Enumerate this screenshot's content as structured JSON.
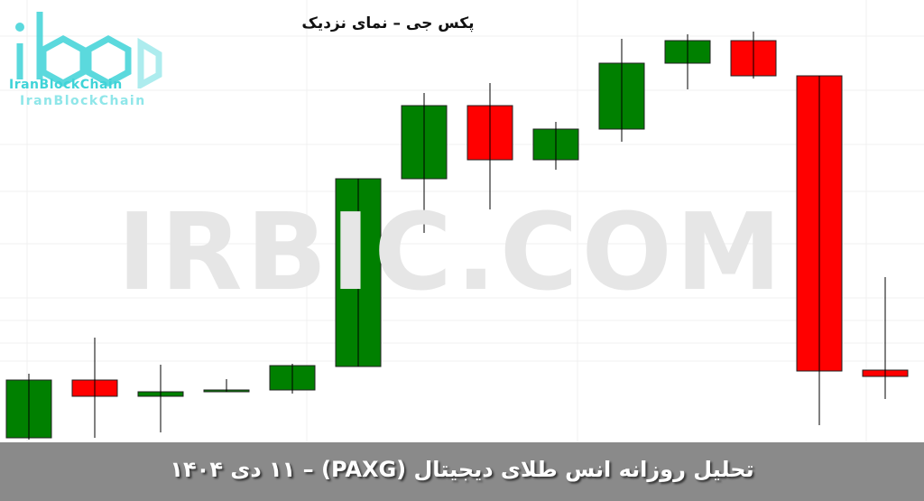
{
  "chart_data": {
    "type": "candlestick",
    "title": "پکس جی – نمای نزدیک",
    "xlabel": "",
    "ylabel": "",
    "grid": true,
    "colors": {
      "up": "#008000",
      "down": "#ff0000",
      "wick": "#000000"
    },
    "note_units": "relative price (no axis printed)",
    "candles": [
      {
        "open": 5,
        "close": 69,
        "high": 76,
        "low": 3
      },
      {
        "open": 69,
        "close": 51,
        "high": 116,
        "low": 5
      },
      {
        "open": 51,
        "close": 56,
        "high": 86,
        "low": 11
      },
      {
        "open": 56,
        "close": 58,
        "high": 70,
        "low": 56
      },
      {
        "open": 58,
        "close": 85,
        "high": 87,
        "low": 54
      },
      {
        "open": 84,
        "close": 292,
        "high": 292,
        "low": 84
      },
      {
        "open": 292,
        "close": 373,
        "high": 387,
        "low": 232
      },
      {
        "open": 373,
        "close": 313,
        "high": 398,
        "low": 258
      },
      {
        "open": 313,
        "close": 347,
        "high": 355,
        "low": 302
      },
      {
        "open": 347,
        "close": 420,
        "high": 447,
        "low": 333
      },
      {
        "open": 420,
        "close": 445,
        "high": 452,
        "low": 391
      },
      {
        "open": 445,
        "close": 406,
        "high": 455,
        "low": 403
      },
      {
        "open": 406,
        "close": 79,
        "high": 406,
        "low": 19
      },
      {
        "open": 80,
        "close": 73,
        "high": 183,
        "low": 48
      }
    ]
  },
  "logo": {
    "text": "IranBlockChain",
    "color": "#3fd3d8"
  },
  "watermark": "IRBIC.COM",
  "footer": {
    "text": "تحلیل روزانه  انس طلای دیجیتال (PAXG) – ۱۱ دی ۱۴۰۴"
  }
}
